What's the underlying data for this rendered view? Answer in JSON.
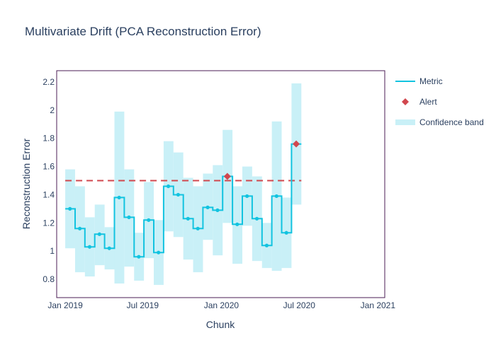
{
  "chart_data": {
    "type": "line",
    "title": "Multivariate Drift (PCA Reconstruction Error)",
    "xlabel": "Chunk",
    "ylabel": "Reconstruction Error",
    "ylim": [
      0.67,
      2.28
    ],
    "xlim": [
      "2018-12-12",
      "2021-01-17"
    ],
    "x_ticks": [
      {
        "date": "2019-01-01",
        "label": "Jan 2019"
      },
      {
        "date": "2019-07-01",
        "label": "Jul 2019"
      },
      {
        "date": "2020-01-01",
        "label": "Jan 2020"
      },
      {
        "date": "2020-07-01",
        "label": "Jul 2020"
      },
      {
        "date": "2021-01-01",
        "label": "Jan 2021"
      }
    ],
    "y_ticks": [
      {
        "value": 0.8,
        "label": "0.8"
      },
      {
        "value": 1.0,
        "label": "1"
      },
      {
        "value": 1.2,
        "label": "1.2"
      },
      {
        "value": 1.4,
        "label": "1.4"
      },
      {
        "value": 1.6,
        "label": "1.6"
      },
      {
        "value": 1.8,
        "label": "1.8"
      },
      {
        "value": 2.0,
        "label": "2"
      },
      {
        "value": 2.2,
        "label": "2.2"
      }
    ],
    "threshold": 1.5,
    "chunks": [
      {
        "start": "2019-01-01",
        "end": "2019-01-24",
        "mid": "2019-01-12",
        "value": 1.3,
        "lower": 1.02,
        "upper": 1.58,
        "alert": false
      },
      {
        "start": "2019-01-24",
        "end": "2019-02-16",
        "mid": "2019-02-04",
        "value": 1.16,
        "lower": 0.85,
        "upper": 1.46,
        "alert": false
      },
      {
        "start": "2019-02-16",
        "end": "2019-03-11",
        "mid": "2019-02-27",
        "value": 1.03,
        "lower": 0.82,
        "upper": 1.24,
        "alert": false
      },
      {
        "start": "2019-03-11",
        "end": "2019-04-03",
        "mid": "2019-03-22",
        "value": 1.12,
        "lower": 0.9,
        "upper": 1.33,
        "alert": false
      },
      {
        "start": "2019-04-03",
        "end": "2019-04-26",
        "mid": "2019-04-14",
        "value": 1.02,
        "lower": 0.87,
        "upper": 1.17,
        "alert": false
      },
      {
        "start": "2019-04-26",
        "end": "2019-05-19",
        "mid": "2019-05-07",
        "value": 1.38,
        "lower": 0.77,
        "upper": 1.99,
        "alert": false
      },
      {
        "start": "2019-05-19",
        "end": "2019-06-11",
        "mid": "2019-05-30",
        "value": 1.24,
        "lower": 0.89,
        "upper": 1.58,
        "alert": false
      },
      {
        "start": "2019-06-11",
        "end": "2019-07-04",
        "mid": "2019-06-22",
        "value": 0.96,
        "lower": 0.79,
        "upper": 1.13,
        "alert": false
      },
      {
        "start": "2019-07-04",
        "end": "2019-07-27",
        "mid": "2019-07-15",
        "value": 1.22,
        "lower": 0.95,
        "upper": 1.49,
        "alert": false
      },
      {
        "start": "2019-07-27",
        "end": "2019-08-19",
        "mid": "2019-08-07",
        "value": 0.99,
        "lower": 0.76,
        "upper": 1.22,
        "alert": false
      },
      {
        "start": "2019-08-19",
        "end": "2019-09-11",
        "mid": "2019-08-30",
        "value": 1.46,
        "lower": 1.14,
        "upper": 1.78,
        "alert": false
      },
      {
        "start": "2019-09-11",
        "end": "2019-10-04",
        "mid": "2019-09-22",
        "value": 1.4,
        "lower": 1.1,
        "upper": 1.7,
        "alert": false
      },
      {
        "start": "2019-10-04",
        "end": "2019-10-27",
        "mid": "2019-10-15",
        "value": 1.23,
        "lower": 0.94,
        "upper": 1.52,
        "alert": false
      },
      {
        "start": "2019-10-27",
        "end": "2019-11-19",
        "mid": "2019-11-07",
        "value": 1.16,
        "lower": 0.85,
        "upper": 1.46,
        "alert": false
      },
      {
        "start": "2019-11-19",
        "end": "2019-12-12",
        "mid": "2019-11-30",
        "value": 1.31,
        "lower": 1.08,
        "upper": 1.55,
        "alert": false
      },
      {
        "start": "2019-12-12",
        "end": "2020-01-04",
        "mid": "2019-12-23",
        "value": 1.29,
        "lower": 0.97,
        "upper": 1.61,
        "alert": false
      },
      {
        "start": "2020-01-04",
        "end": "2020-01-27",
        "mid": "2020-01-15",
        "value": 1.53,
        "lower": 1.2,
        "upper": 1.86,
        "alert": true
      },
      {
        "start": "2020-01-27",
        "end": "2020-02-19",
        "mid": "2020-02-07",
        "value": 1.19,
        "lower": 0.91,
        "upper": 1.46,
        "alert": false
      },
      {
        "start": "2020-02-19",
        "end": "2020-03-13",
        "mid": "2020-03-01",
        "value": 1.39,
        "lower": 1.18,
        "upper": 1.6,
        "alert": false
      },
      {
        "start": "2020-03-13",
        "end": "2020-04-05",
        "mid": "2020-03-24",
        "value": 1.23,
        "lower": 0.93,
        "upper": 1.53,
        "alert": false
      },
      {
        "start": "2020-04-05",
        "end": "2020-04-28",
        "mid": "2020-04-16",
        "value": 1.04,
        "lower": 0.88,
        "upper": 1.2,
        "alert": false
      },
      {
        "start": "2020-04-28",
        "end": "2020-05-21",
        "mid": "2020-05-09",
        "value": 1.39,
        "lower": 0.86,
        "upper": 1.92,
        "alert": false
      },
      {
        "start": "2020-05-21",
        "end": "2020-06-13",
        "mid": "2020-06-01",
        "value": 1.13,
        "lower": 0.88,
        "upper": 1.38,
        "alert": false
      },
      {
        "start": "2020-06-13",
        "end": "2020-07-06",
        "mid": "2020-06-24",
        "value": 1.76,
        "lower": 1.33,
        "upper": 2.19,
        "alert": true
      }
    ],
    "legend": {
      "placement": "right",
      "items": [
        {
          "key": "metric",
          "label": "Metric"
        },
        {
          "key": "alert",
          "label": "Alert"
        },
        {
          "key": "band",
          "label": "Confidence band"
        }
      ]
    },
    "colors": {
      "metric": "#12c3e0",
      "band": "#c9f0f7",
      "alert": "#d1474e",
      "threshold": "#d1474e",
      "axis_frame": "#4b1d55",
      "text": "#2a3f5f"
    }
  }
}
